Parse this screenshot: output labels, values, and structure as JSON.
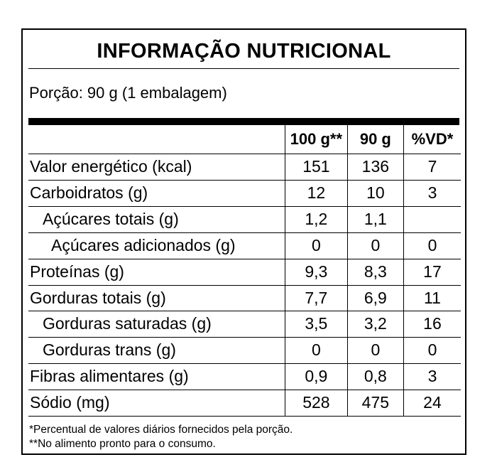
{
  "title": "INFORMAÇÃO NUTRICIONAL",
  "portion": "Porção: 90 g (1 embalagem)",
  "columns": [
    "100 g**",
    "90 g",
    "%VD*"
  ],
  "rows": [
    {
      "name": "Valor energético (kcal)",
      "per100": "151",
      "per90": "136",
      "vd": "7"
    },
    {
      "name": "Carboidratos (g)",
      "per100": "12",
      "per90": "10",
      "vd": "3"
    },
    {
      "name": "Açúcares totais (g)",
      "per100": "1,2",
      "per90": "1,1",
      "vd": ""
    },
    {
      "name": "Açúcares adicionados (g)",
      "per100": "0",
      "per90": "0",
      "vd": "0"
    },
    {
      "name": "Proteínas (g)",
      "per100": "9,3",
      "per90": "8,3",
      "vd": "17"
    },
    {
      "name": "Gorduras totais (g)",
      "per100": "7,7",
      "per90": "6,9",
      "vd": "11"
    },
    {
      "name": "Gorduras saturadas (g)",
      "per100": "3,5",
      "per90": "3,2",
      "vd": "16"
    },
    {
      "name": "Gorduras trans (g)",
      "per100": "0",
      "per90": "0",
      "vd": "0"
    },
    {
      "name": "Fibras alimentares (g)",
      "per100": "0,9",
      "per90": "0,8",
      "vd": "3"
    },
    {
      "name": "Sódio (mg)",
      "per100": "528",
      "per90": "475",
      "vd": "24"
    }
  ],
  "footnotes": [
    "*Percentual de valores diários fornecidos pela porção.",
    "**No alimento pronto para o consumo."
  ]
}
